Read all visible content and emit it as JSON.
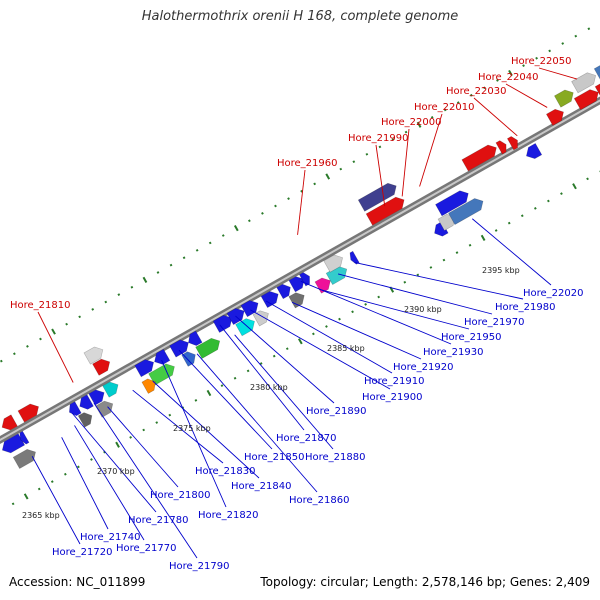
{
  "title": "Halothermothrix orenii H 168, complete genome",
  "accession": "Accession: NC_011899",
  "stats": "Topology: circular; Length: 2,578,146 bp; Genes: 2,409",
  "colors": {
    "top_strand_label": "#cc0000",
    "bottom_strand_label": "#0000cc",
    "backbone": "#888888",
    "tick": "#2a7a2a"
  },
  "scale_labels": [
    "2365 kbp",
    "2370 kbp",
    "2375 kbp",
    "2380 kbp",
    "2385 kbp",
    "2390 kbp",
    "2395 kbp"
  ],
  "top_labels": [
    "Hore_21810",
    "Hore_21960",
    "Hore_21990",
    "Hore_22000",
    "Hore_22010",
    "Hore_22030",
    "Hore_22040",
    "Hore_22050"
  ],
  "bottom_labels": [
    "Hore_21720",
    "Hore_21740",
    "Hore_21770",
    "Hore_21780",
    "Hore_21790",
    "Hore_21800",
    "Hore_21820",
    "Hore_21830",
    "Hore_21840",
    "Hore_21850",
    "Hore_21860",
    "Hore_21870",
    "Hore_21880",
    "Hore_21890",
    "Hore_21900",
    "Hore_21910",
    "Hore_21920",
    "Hore_21930",
    "Hore_21950",
    "Hore_21970",
    "Hore_21980",
    "Hore_22020"
  ]
}
